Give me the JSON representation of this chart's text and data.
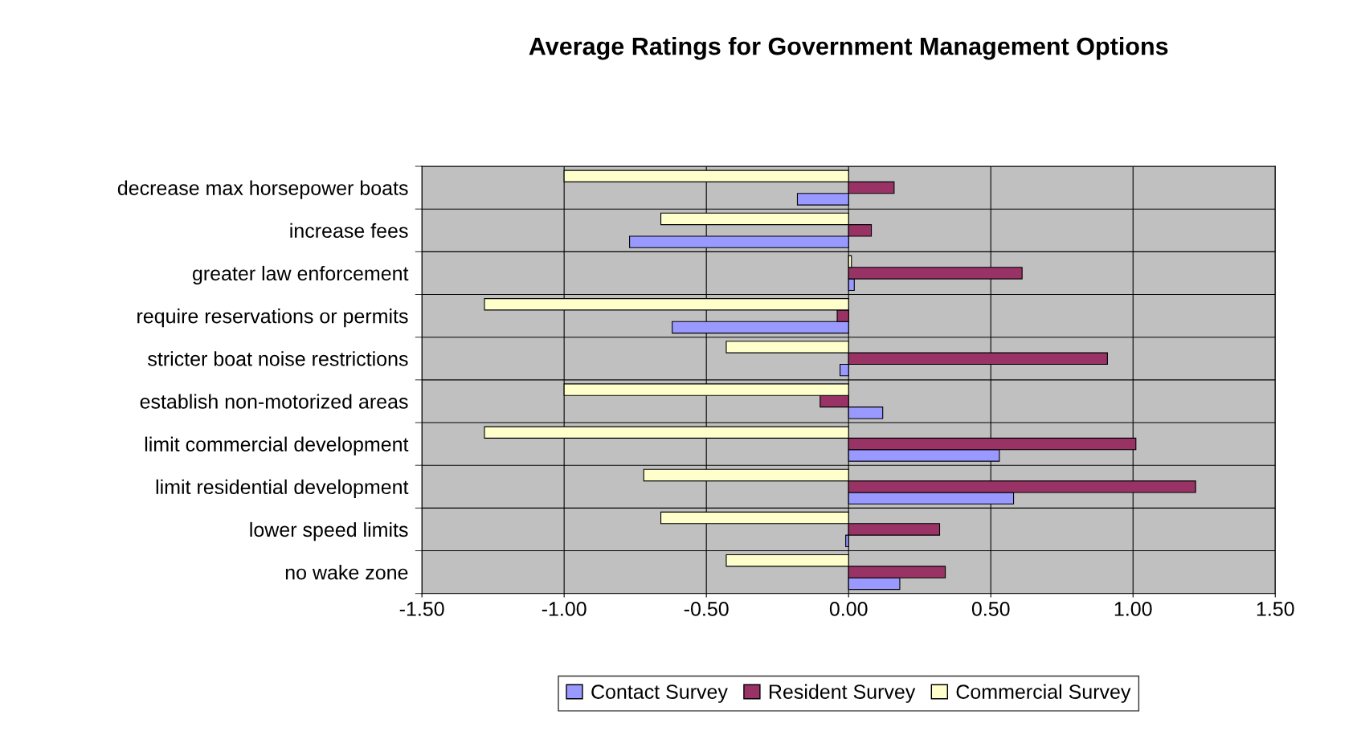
{
  "chart_data": {
    "type": "bar",
    "orientation": "horizontal",
    "title": "Average Ratings for Government Management Options",
    "categories": [
      "decrease max horsepower boats",
      "increase fees",
      "greater law enforcement",
      "require reservations or permits",
      "stricter boat noise restrictions",
      "establish non-motorized areas",
      "limit commercial development",
      "limit residential development",
      "lower speed limits",
      "no wake zone"
    ],
    "series": [
      {
        "name": "Contact Survey",
        "color": "#9999ff",
        "values": [
          -0.18,
          -0.77,
          0.02,
          -0.62,
          -0.03,
          0.12,
          0.53,
          0.58,
          -0.01,
          0.18
        ]
      },
      {
        "name": "Resident Survey",
        "color": "#993366",
        "values": [
          0.16,
          0.08,
          0.61,
          -0.04,
          0.91,
          -0.1,
          1.01,
          1.22,
          0.32,
          0.34
        ]
      },
      {
        "name": "Commercial Survey",
        "color": "#ffffcc",
        "values": [
          -1.0,
          -0.66,
          0.01,
          -1.28,
          -0.43,
          -1.0,
          -1.28,
          -0.72,
          -0.66,
          -0.43
        ]
      }
    ],
    "xlim": [
      -1.5,
      1.5
    ],
    "xticks": [
      {
        "value": -1.5,
        "label": "-1.50"
      },
      {
        "value": -1.0,
        "label": "-1.00"
      },
      {
        "value": -0.5,
        "label": "-0.50"
      },
      {
        "value": 0,
        "label": "0.00"
      },
      {
        "value": 0.5,
        "label": "0.50"
      },
      {
        "value": 1.0,
        "label": "1.00"
      },
      {
        "value": 1.5,
        "label": "1.50"
      }
    ],
    "grid": true,
    "legend": "bottom"
  }
}
